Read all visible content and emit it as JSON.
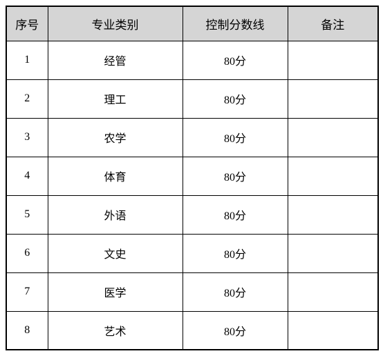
{
  "table": {
    "headers": {
      "seq": "序号",
      "category": "专业类别",
      "score": "控制分数线",
      "note": "备注"
    },
    "rows": [
      {
        "seq": "1",
        "category": "经管",
        "score": "80分",
        "note": ""
      },
      {
        "seq": "2",
        "category": "理工",
        "score": "80分",
        "note": ""
      },
      {
        "seq": "3",
        "category": "农学",
        "score": "80分",
        "note": ""
      },
      {
        "seq": "4",
        "category": "体育",
        "score": "80分",
        "note": ""
      },
      {
        "seq": "5",
        "category": "外语",
        "score": "80分",
        "note": ""
      },
      {
        "seq": "6",
        "category": "文史",
        "score": "80分",
        "note": ""
      },
      {
        "seq": "7",
        "category": "医学",
        "score": "80分",
        "note": ""
      },
      {
        "seq": "8",
        "category": "艺术",
        "score": "80分",
        "note": ""
      }
    ],
    "colors": {
      "header_bg": "#d5d5d5",
      "cell_bg": "#ffffff",
      "border": "#000000"
    },
    "font_sizes": {
      "header": 17,
      "cell": 16
    }
  }
}
